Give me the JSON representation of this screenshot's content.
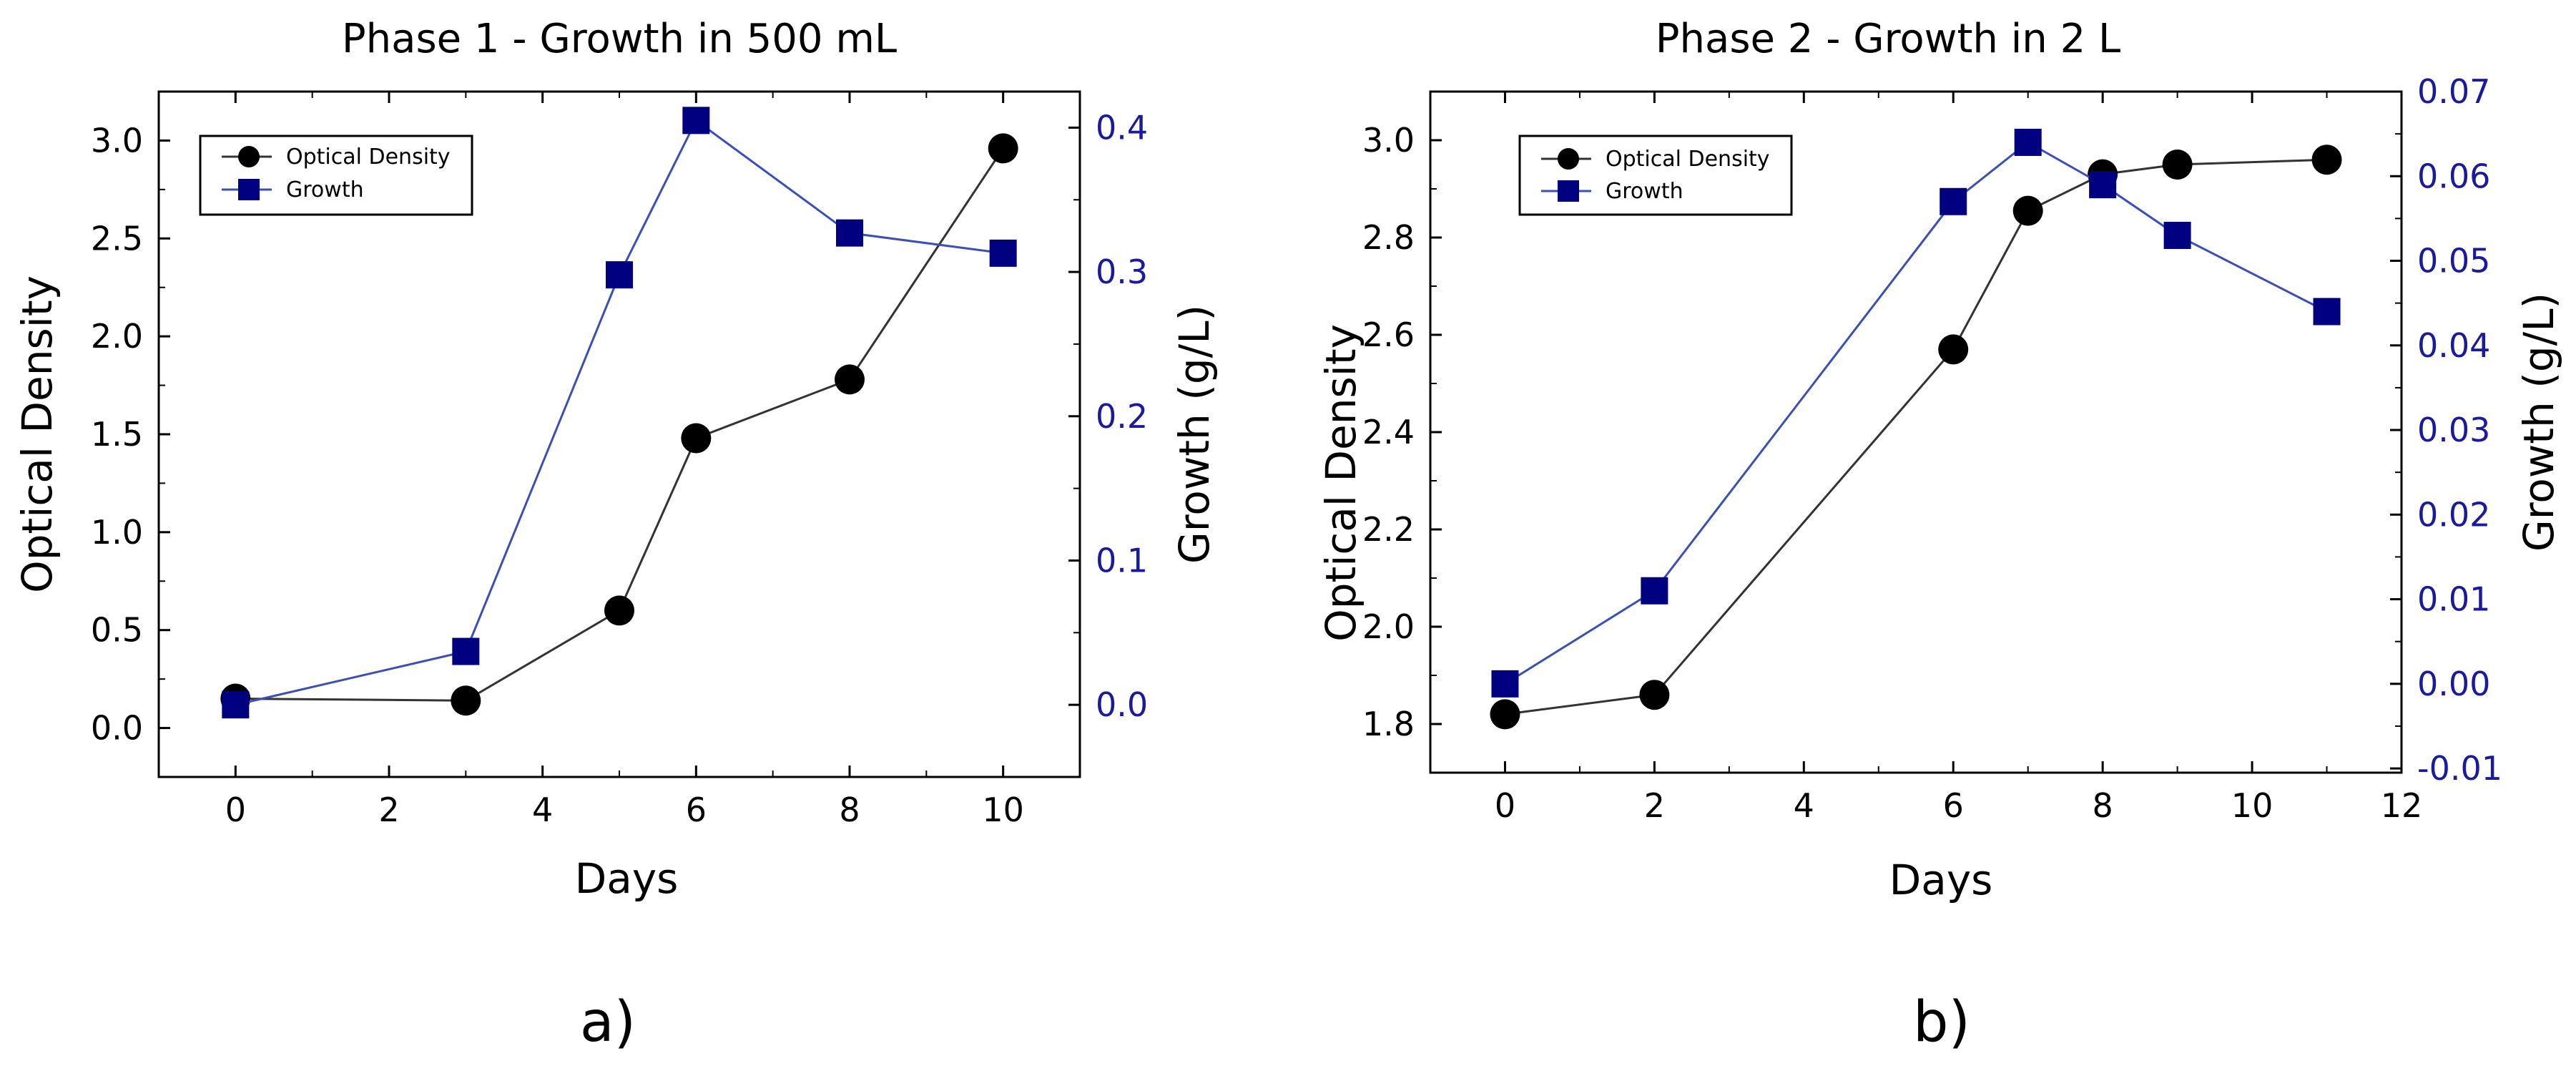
{
  "colors": {
    "od": "#000000",
    "growth": "#000080",
    "od_line": "#333333",
    "growth_line": "#3a4fb8",
    "right_axis": "#1a1a9e"
  },
  "chart_data": [
    {
      "type": "line",
      "panel_label": "a)",
      "title": "Phase 1 - Growth in 500 mL",
      "xlabel": "Days",
      "ylabel": "Optical Density",
      "y2label": "Growth (g/L)",
      "xlim": [
        -1,
        11
      ],
      "ylim": [
        -0.25,
        3.25
      ],
      "y2lim": [
        -0.05,
        0.425
      ],
      "xticks": [
        0,
        2,
        4,
        6,
        8,
        10
      ],
      "yticks": [
        0.0,
        0.5,
        1.0,
        1.5,
        2.0,
        2.5,
        3.0
      ],
      "ytick_labels": [
        "0.0",
        "0.5",
        "1.0",
        "1.5",
        "2.0",
        "2.5",
        "3.0"
      ],
      "y2ticks": [
        0.0,
        0.1,
        0.2,
        0.3,
        0.4
      ],
      "y2tick_labels": [
        "0.0",
        "0.1",
        "0.2",
        "0.3",
        "0.4"
      ],
      "legend": [
        "Optical Density",
        "Growth"
      ],
      "series": [
        {
          "name": "Optical Density",
          "axis": "left",
          "marker": "circle",
          "x": [
            0,
            3,
            5,
            6,
            8,
            10
          ],
          "values": [
            0.15,
            0.14,
            0.6,
            1.48,
            1.78,
            2.96
          ]
        },
        {
          "name": "Growth",
          "axis": "right",
          "marker": "square",
          "x": [
            0,
            3,
            5,
            6,
            8,
            10
          ],
          "values": [
            0.0,
            0.037,
            0.298,
            0.405,
            0.327,
            0.313
          ]
        }
      ]
    },
    {
      "type": "line",
      "panel_label": "b)",
      "title": "Phase 2 - Growth in 2 L",
      "xlabel": "Days",
      "ylabel": "Optical Density",
      "y2label": "Growth (g/L)",
      "xlim": [
        -1,
        12
      ],
      "ylim": [
        1.7,
        3.1
      ],
      "y2lim": [
        -0.0105,
        0.07
      ],
      "xticks": [
        0,
        2,
        4,
        6,
        8,
        10,
        12
      ],
      "yticks": [
        1.8,
        2.0,
        2.2,
        2.4,
        2.6,
        2.8,
        3.0
      ],
      "ytick_labels": [
        "1.8",
        "2.0",
        "2.2",
        "2.4",
        "2.6",
        "2.8",
        "3.0"
      ],
      "y2ticks": [
        -0.01,
        0.0,
        0.01,
        0.02,
        0.03,
        0.04,
        0.05,
        0.06,
        0.07
      ],
      "y2tick_labels": [
        "-0.01",
        "0.00",
        "0.01",
        "0.02",
        "0.03",
        "0.04",
        "0.05",
        "0.06",
        "0.07"
      ],
      "legend": [
        "Optical Density",
        "Growth"
      ],
      "series": [
        {
          "name": "Optical Density",
          "axis": "left",
          "marker": "circle",
          "x": [
            0,
            2,
            6,
            7,
            8,
            9,
            11
          ],
          "values": [
            1.82,
            1.86,
            2.57,
            2.855,
            2.93,
            2.95,
            2.96
          ]
        },
        {
          "name": "Growth",
          "axis": "right",
          "marker": "square",
          "x": [
            0,
            2,
            6,
            7,
            8,
            9,
            11
          ],
          "values": [
            0.0,
            0.011,
            0.057,
            0.064,
            0.059,
            0.053,
            0.044
          ]
        }
      ]
    }
  ]
}
